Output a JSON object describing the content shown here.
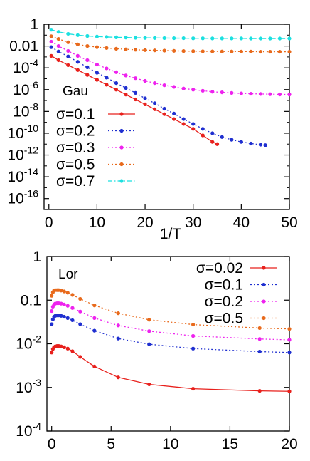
{
  "chart_data": [
    {
      "type": "line",
      "panel_label": "Gau",
      "xlabel": "1/T",
      "ylabel": "",
      "xlim": [
        -1,
        50
      ],
      "ylim_log10": [
        -17,
        0
      ],
      "yscale": "log",
      "xticks": [
        0,
        10,
        20,
        30,
        40,
        50
      ],
      "yticks": [
        {
          "exp": 0,
          "text": "1"
        },
        {
          "exp": -2,
          "text": "0.01"
        },
        {
          "exp": -4,
          "base": "10",
          "power": "-4"
        },
        {
          "exp": -6,
          "base": "10",
          "power": "-6"
        },
        {
          "exp": -8,
          "base": "10",
          "power": "-8"
        },
        {
          "exp": -10,
          "base": "10",
          "power": "-10"
        },
        {
          "exp": -12,
          "base": "10",
          "power": "-12"
        },
        {
          "exp": -14,
          "base": "10",
          "power": "-14"
        },
        {
          "exp": -16,
          "base": "10",
          "power": "-16"
        }
      ],
      "legend_position": "bottom-left",
      "series": [
        {
          "name": "σ=0.1",
          "color": "#e8201c",
          "dash": "solid",
          "x": [
            0.5,
            2,
            4,
            6,
            8,
            10,
            12,
            14,
            16,
            18,
            20,
            22,
            24,
            26,
            28,
            30,
            32,
            34,
            35
          ],
          "y_log10": [
            -2.9,
            -3.3,
            -3.75,
            -4.2,
            -4.65,
            -5.1,
            -5.55,
            -6.0,
            -6.45,
            -6.9,
            -7.35,
            -7.8,
            -8.25,
            -8.7,
            -9.15,
            -9.6,
            -10.2,
            -10.8,
            -11.0
          ]
        },
        {
          "name": "σ=0.2",
          "color": "#1f2fd0",
          "dash": "dotted",
          "x": [
            0.5,
            2,
            4,
            6,
            8,
            10,
            12,
            14,
            16,
            18,
            20,
            22,
            24,
            26,
            28,
            30,
            32,
            34,
            36,
            38,
            40,
            42,
            44,
            45
          ],
          "y_log10": [
            -2.1,
            -2.5,
            -2.95,
            -3.45,
            -3.95,
            -4.45,
            -4.9,
            -5.4,
            -5.85,
            -6.3,
            -6.8,
            -7.25,
            -7.75,
            -8.2,
            -8.7,
            -9.15,
            -9.6,
            -10.0,
            -10.35,
            -10.6,
            -10.8,
            -10.95,
            -11.05,
            -11.1
          ]
        },
        {
          "name": "σ=0.3",
          "color": "#ee22ee",
          "dash": "dotted",
          "x": [
            0.5,
            2,
            4,
            6,
            8,
            10,
            12,
            14,
            16,
            18,
            20,
            22,
            24,
            26,
            28,
            30,
            32,
            34,
            36,
            38,
            40,
            42,
            44,
            46,
            48,
            50
          ],
          "y_log10": [
            -1.6,
            -2.0,
            -2.45,
            -2.9,
            -3.3,
            -3.7,
            -4.05,
            -4.4,
            -4.7,
            -4.95,
            -5.2,
            -5.4,
            -5.6,
            -5.75,
            -5.9,
            -6.0,
            -6.1,
            -6.2,
            -6.25,
            -6.3,
            -6.35,
            -6.38,
            -6.4,
            -6.42,
            -6.44,
            -6.45
          ]
        },
        {
          "name": "σ=0.5",
          "color": "#e86a1c",
          "dash": "dotted",
          "x": [
            0.5,
            2,
            4,
            6,
            8,
            10,
            12,
            14,
            16,
            18,
            20,
            22,
            24,
            26,
            28,
            30,
            32,
            34,
            36,
            38,
            40,
            42,
            44,
            46,
            48,
            50
          ],
          "y_log10": [
            -1.1,
            -1.35,
            -1.65,
            -1.85,
            -2.0,
            -2.1,
            -2.18,
            -2.25,
            -2.3,
            -2.34,
            -2.37,
            -2.4,
            -2.42,
            -2.44,
            -2.46,
            -2.47,
            -2.48,
            -2.49,
            -2.5,
            -2.5,
            -2.51,
            -2.51,
            -2.52,
            -2.52,
            -2.52,
            -2.52
          ]
        },
        {
          "name": "σ=0.7",
          "color": "#1ce0e0",
          "dash": "dashdot",
          "x": [
            0.5,
            2,
            4,
            6,
            8,
            10,
            12,
            14,
            16,
            18,
            20,
            22,
            24,
            26,
            28,
            30,
            32,
            34,
            36,
            38,
            40,
            42,
            44,
            46,
            48,
            50
          ],
          "y_log10": [
            -0.5,
            -0.7,
            -0.88,
            -1.0,
            -1.08,
            -1.13,
            -1.17,
            -1.2,
            -1.22,
            -1.24,
            -1.25,
            -1.26,
            -1.27,
            -1.28,
            -1.28,
            -1.29,
            -1.29,
            -1.3,
            -1.3,
            -1.3,
            -1.3,
            -1.31,
            -1.31,
            -1.31,
            -1.31,
            -1.31
          ]
        }
      ]
    },
    {
      "type": "line",
      "panel_label": "Lor",
      "xlabel": "",
      "ylabel": "",
      "xlim": [
        -0.4,
        20
      ],
      "ylim_log10": [
        -4,
        0
      ],
      "yscale": "log",
      "xticks": [
        0,
        5,
        10,
        15,
        20
      ],
      "yticks": [
        {
          "exp": 0,
          "text": "1"
        },
        {
          "exp": -1,
          "text": "0.1"
        },
        {
          "exp": -2,
          "base": "10",
          "power": "-2"
        },
        {
          "exp": -3,
          "base": "10",
          "power": "-3"
        },
        {
          "exp": -4,
          "base": "10",
          "power": "-4"
        }
      ],
      "legend_position": "top-right",
      "series": [
        {
          "name": "σ=0.02",
          "color": "#e8201c",
          "dash": "solid",
          "x": [
            0.0,
            0.1,
            0.2,
            0.3,
            0.45,
            0.6,
            0.8,
            1.05,
            1.35,
            1.75,
            2.4,
            3.6,
            5.6,
            8.2,
            11.9,
            17.5,
            20
          ],
          "y_log10": [
            -2.2,
            -2.12,
            -2.08,
            -2.06,
            -2.05,
            -2.05,
            -2.06,
            -2.08,
            -2.11,
            -2.17,
            -2.3,
            -2.52,
            -2.77,
            -2.93,
            -3.03,
            -3.08,
            -3.09
          ]
        },
        {
          "name": "σ=0.1",
          "color": "#1f2fd0",
          "dash": "dotted",
          "x": [
            0.0,
            0.1,
            0.2,
            0.3,
            0.45,
            0.6,
            0.8,
            1.05,
            1.35,
            1.75,
            2.4,
            3.6,
            5.6,
            8.2,
            11.9,
            17.5,
            20
          ],
          "y_log10": [
            -1.55,
            -1.44,
            -1.38,
            -1.36,
            -1.35,
            -1.35,
            -1.36,
            -1.38,
            -1.41,
            -1.46,
            -1.55,
            -1.7,
            -1.88,
            -2.01,
            -2.11,
            -2.18,
            -2.2
          ]
        },
        {
          "name": "σ=0.2",
          "color": "#ee22ee",
          "dash": "dotted",
          "x": [
            0.0,
            0.1,
            0.2,
            0.3,
            0.45,
            0.6,
            0.8,
            1.05,
            1.35,
            1.75,
            2.4,
            3.6,
            5.6,
            8.2,
            11.9,
            17.5,
            20
          ],
          "y_log10": [
            -1.25,
            -1.15,
            -1.1,
            -1.08,
            -1.07,
            -1.07,
            -1.08,
            -1.1,
            -1.13,
            -1.18,
            -1.26,
            -1.41,
            -1.58,
            -1.71,
            -1.82,
            -1.89,
            -1.91
          ]
        },
        {
          "name": "σ=0.5",
          "color": "#e86a1c",
          "dash": "dotted",
          "x": [
            0.0,
            0.1,
            0.2,
            0.3,
            0.45,
            0.6,
            0.8,
            1.05,
            1.35,
            1.75,
            2.4,
            3.6,
            5.6,
            8.2,
            11.9,
            17.5,
            20
          ],
          "y_log10": [
            -0.9,
            -0.82,
            -0.78,
            -0.77,
            -0.77,
            -0.77,
            -0.78,
            -0.8,
            -0.83,
            -0.88,
            -0.97,
            -1.12,
            -1.3,
            -1.45,
            -1.56,
            -1.64,
            -1.66
          ]
        }
      ]
    }
  ]
}
